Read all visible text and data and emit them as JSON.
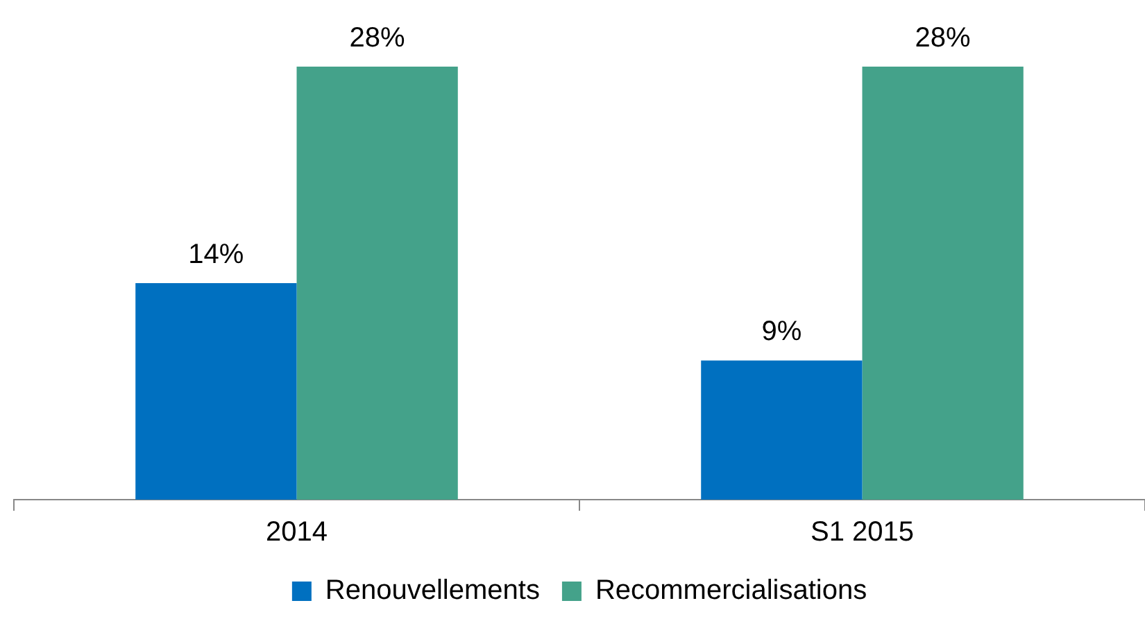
{
  "chart_data": {
    "type": "bar",
    "categories": [
      "2014",
      "S1 2015"
    ],
    "series": [
      {
        "name": "Renouvellements",
        "color": "#0070c0",
        "values": [
          14,
          9
        ],
        "value_labels": [
          "14%",
          "9%"
        ]
      },
      {
        "name": "Recommercialisations",
        "color": "#44a28a",
        "values": [
          28,
          28
        ],
        "value_labels": [
          "28%",
          "28%"
        ]
      }
    ],
    "legend": "bottom",
    "grid": false
  }
}
